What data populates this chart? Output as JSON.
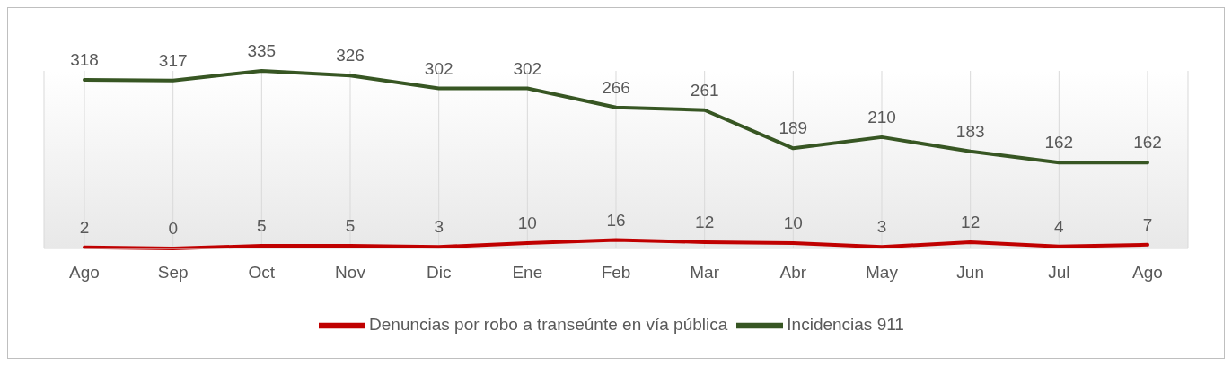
{
  "chart_data": {
    "type": "line",
    "categories": [
      "Ago",
      "Sep",
      "Oct",
      "Nov",
      "Dic",
      "Ene",
      "Feb",
      "Mar",
      "Abr",
      "May",
      "Jun",
      "Jul",
      "Ago"
    ],
    "series": [
      {
        "name": "Denuncias por robo a transeúnte en vía pública",
        "color": "#c00000",
        "values": [
          2,
          0,
          5,
          5,
          3,
          10,
          16,
          12,
          10,
          3,
          12,
          4,
          7
        ]
      },
      {
        "name": "Incidencias 911",
        "color": "#375623",
        "values": [
          318,
          317,
          335,
          326,
          302,
          302,
          266,
          261,
          189,
          210,
          183,
          162,
          162
        ]
      }
    ],
    "data_labels": true,
    "grid": "x",
    "legend": "bottom",
    "marker": "none",
    "line_style": "solid"
  }
}
